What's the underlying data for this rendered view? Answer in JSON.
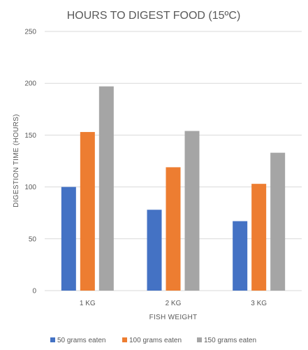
{
  "chart_data": {
    "type": "bar",
    "title": "HOURS TO DIGEST FOOD (15ºC)",
    "xlabel": "FISH WEIGHT",
    "ylabel": "DIGESTION TIME (HOURS)",
    "categories": [
      "1 KG",
      "2 KG",
      "3 KG"
    ],
    "ylim": [
      0,
      250
    ],
    "yticks": [
      0,
      50,
      100,
      150,
      200,
      250
    ],
    "grid": true,
    "legend_position": "bottom",
    "series": [
      {
        "name": "50 grams eaten",
        "color": "#4472c4",
        "values": [
          100,
          78,
          67
        ]
      },
      {
        "name": "100 grams eaten",
        "color": "#ed7d31",
        "values": [
          153,
          119,
          103
        ]
      },
      {
        "name": "150 grams eaten",
        "color": "#a5a5a5",
        "values": [
          197,
          154,
          133
        ]
      }
    ]
  }
}
